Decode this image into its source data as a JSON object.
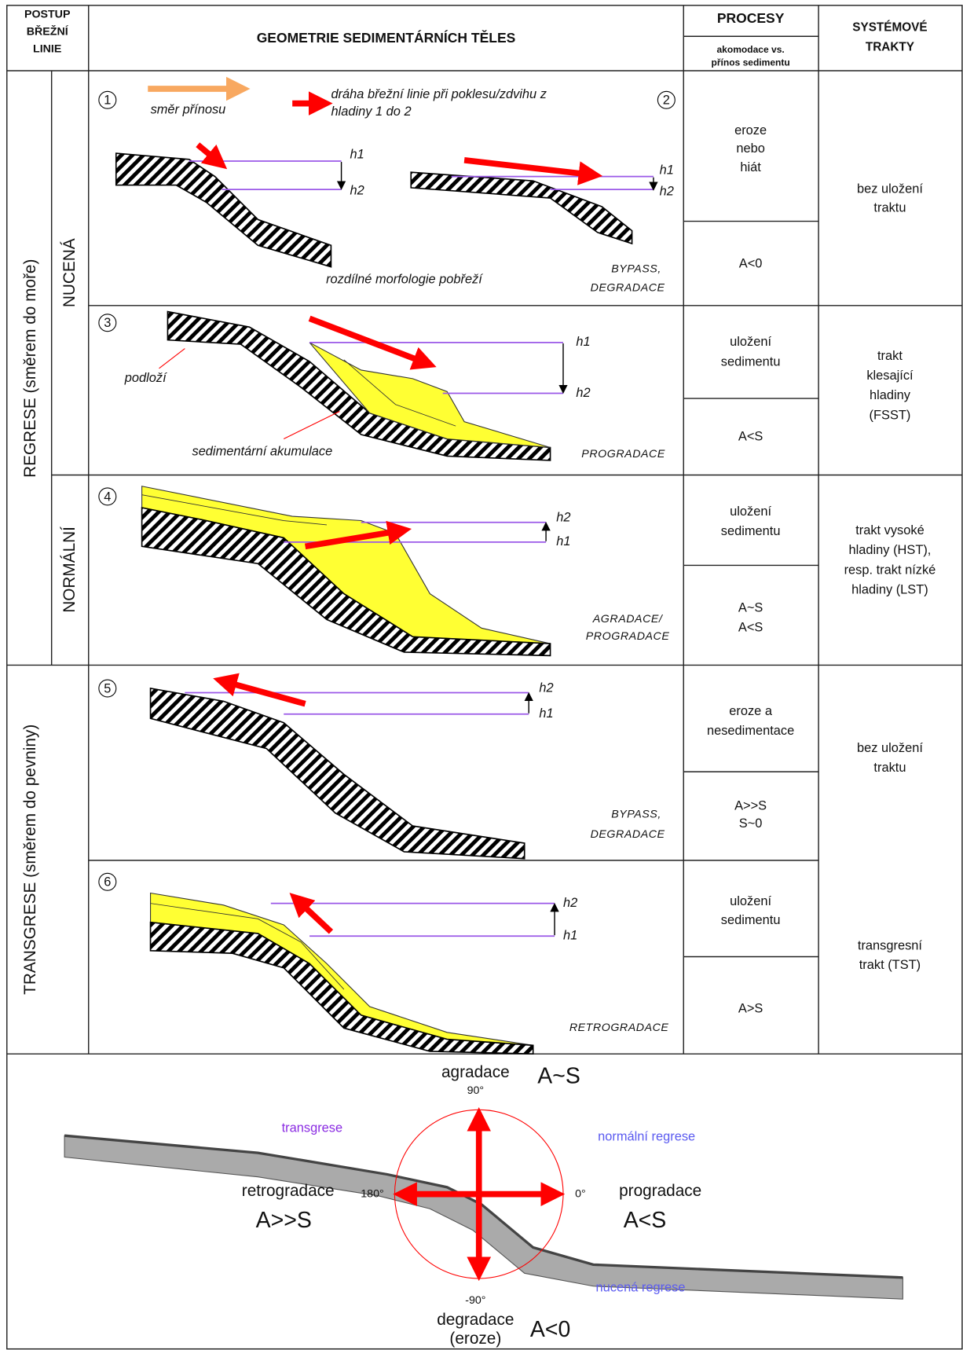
{
  "header": {
    "shoreline": [
      "POSTUP",
      "BŘEŽNÍ",
      "LINIE"
    ],
    "geometry": "GEOMETRIE SEDIMENTÁRNÍCH TĚLES",
    "processes": "PROCESY",
    "processes_sub": [
      "akomodace vs.",
      "přínos sedimentu"
    ],
    "tracts": [
      "SYSTÉMOVÉ",
      "TRAKTY"
    ]
  },
  "groups": {
    "regression": "REGRESE (směrem do moře)",
    "transgression": "TRANSGRESE (směrem do pevniny)",
    "forced": "NUCENÁ",
    "normal": "NORMÁLNÍ"
  },
  "legend": {
    "supply": "směr přínosu",
    "path": [
      "dráha břežní linie při poklesu/zdvihu z",
      "hladiny 1 do 2"
    ]
  },
  "panels": [
    {
      "number": "1",
      "number2": "2",
      "levels": [
        "h1",
        "h2"
      ],
      "levels2": [
        "h1",
        "h2"
      ],
      "caption": "rozdílné morfologie pobřeží",
      "style": [
        "BYPASS,",
        "DEGRADACE"
      ],
      "process": [
        "eroze",
        "nebo",
        "hiát"
      ],
      "accommodation": [
        "A<0"
      ]
    },
    {
      "number": "3",
      "levels": [
        "h1",
        "h2"
      ],
      "annotations": [
        "podloží",
        "sedimentární akumulace"
      ],
      "style": [
        "PROGRADACE"
      ],
      "process": [
        "uložení",
        "sedimentu"
      ],
      "accommodation": [
        "A<S"
      ]
    },
    {
      "number": "4",
      "levels": [
        "h1",
        "h2"
      ],
      "style": [
        "AGRADACE/",
        "PROGRADACE"
      ],
      "process": [
        "uložení",
        "sedimentu"
      ],
      "accommodation": [
        "A~S",
        "A<S"
      ]
    },
    {
      "number": "5",
      "levels": [
        "h1",
        "h2"
      ],
      "style": [
        "BYPASS,",
        "DEGRADACE"
      ],
      "process": [
        "eroze a",
        "nesedimentace"
      ],
      "accommodation": [
        "A>>S",
        "S~0"
      ]
    },
    {
      "number": "6",
      "levels": [
        "h1",
        "h2"
      ],
      "style": [
        "RETROGRADACE"
      ],
      "process": [
        "uložení",
        "sedimentu"
      ],
      "accommodation": [
        "A>S"
      ]
    }
  ],
  "tracts": [
    [
      "bez uložení",
      "traktu"
    ],
    [
      "trakt",
      "klesající",
      "hladiny",
      "(FSST)"
    ],
    [
      "trakt vysoké",
      "hladiny (HST),",
      "resp. trakt nízké",
      "hladiny (LST)"
    ],
    [
      "bez uložení",
      "traktu"
    ],
    [
      "transgresní",
      "trakt (TST)"
    ]
  ],
  "summary": {
    "up": [
      "agradace",
      "90°"
    ],
    "up_ratio": "A~S",
    "left": "retrogradace",
    "left_angle": "180°",
    "left_ratio": "A>>S",
    "right_angle": "0°",
    "right": "progradace",
    "right_ratio": "A<S",
    "down": [
      "-90°",
      "degradace",
      "(eroze)"
    ],
    "down_ratio": "A<0",
    "transgression": "transgrese",
    "normal": "normální regrese",
    "forced": "nucená regrese"
  }
}
